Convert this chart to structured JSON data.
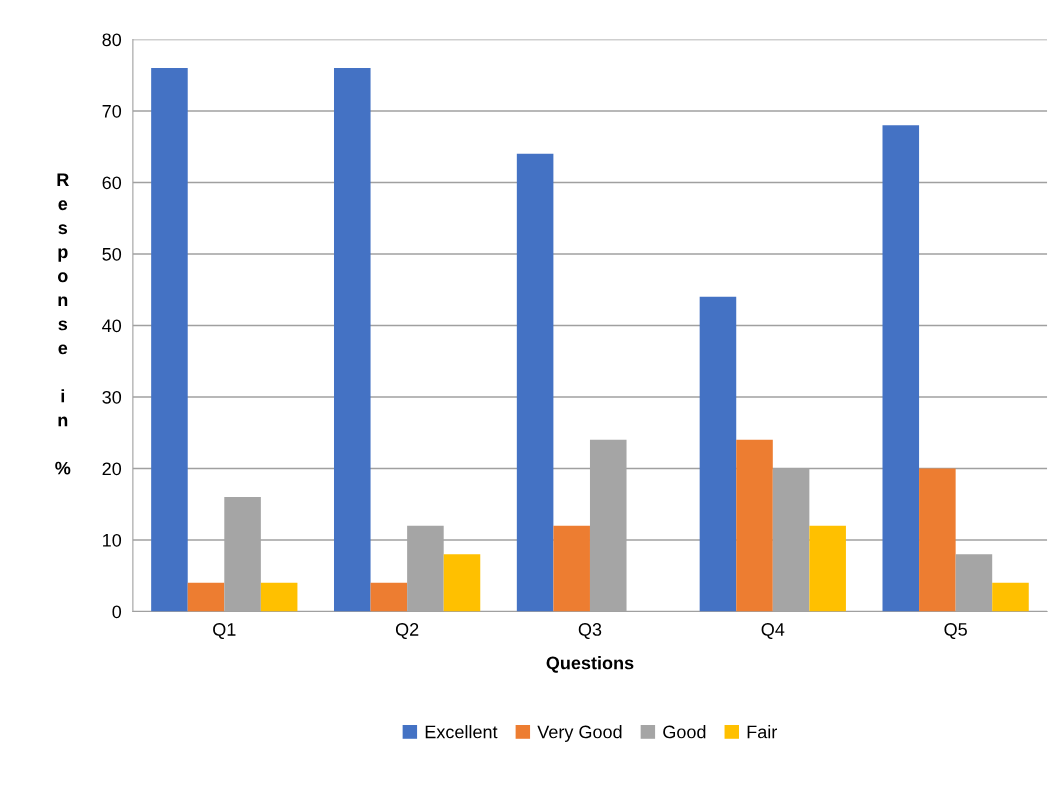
{
  "chart_data": {
    "type": "bar",
    "xlabel": "Questions",
    "ylabel": "Response in %",
    "categories": [
      "Q1",
      "Q2",
      "Q3",
      "Q4",
      "Q5"
    ],
    "series": [
      {
        "name": "Excellent",
        "color": "#4472c4",
        "values": [
          76,
          76,
          64,
          44,
          68
        ]
      },
      {
        "name": "Very Good",
        "color": "#ed7d31",
        "values": [
          4,
          4,
          12,
          24,
          20
        ]
      },
      {
        "name": "Good",
        "color": "#a5a5a5",
        "values": [
          16,
          12,
          24,
          20,
          8
        ]
      },
      {
        "name": "Fair",
        "color": "#ffc000",
        "values": [
          4,
          8,
          0,
          12,
          4
        ]
      }
    ],
    "ylim": [
      0,
      80
    ],
    "yticks": [
      0,
      10,
      20,
      30,
      40,
      50,
      60,
      70,
      80
    ],
    "grid": "y",
    "legend": "bottom"
  }
}
